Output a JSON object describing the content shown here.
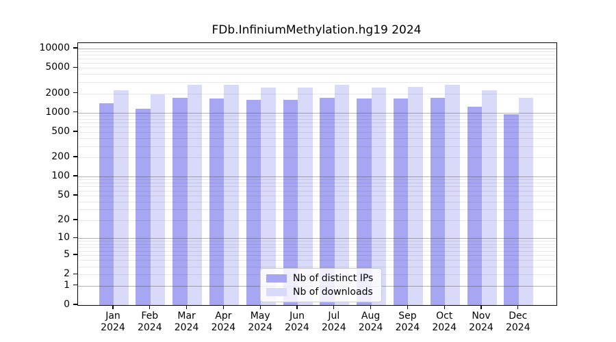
{
  "chart_data": {
    "type": "bar",
    "title": "FDb.InfiniumMethylation.hg19 2024",
    "year_label": "2024",
    "categories": [
      "Jan",
      "Feb",
      "Mar",
      "Apr",
      "May",
      "Jun",
      "Jul",
      "Aug",
      "Sep",
      "Oct",
      "Nov",
      "Dec"
    ],
    "series": [
      {
        "name": "Nb of distinct IPs",
        "color": "#a6a6f2",
        "values": [
          1400,
          1150,
          1700,
          1650,
          1580,
          1600,
          1700,
          1650,
          1680,
          1700,
          1250,
          950
        ]
      },
      {
        "name": "Nb of downloads",
        "color": "#d9d9f9",
        "values": [
          2250,
          1950,
          2700,
          2700,
          2450,
          2450,
          2700,
          2450,
          2550,
          2700,
          2250,
          1700
        ]
      }
    ],
    "yscale": "log1p",
    "ylim": [
      0,
      10000
    ],
    "yticks": [
      0,
      1,
      2,
      5,
      10,
      20,
      50,
      100,
      200,
      500,
      1000,
      2000,
      5000,
      10000
    ],
    "ytick_labels": [
      "0",
      "1",
      "2",
      "5",
      "10",
      "20",
      "50",
      "100",
      "200",
      "500",
      "1000",
      "2000",
      "5000",
      "10000"
    ],
    "major_grid_decades": [
      1,
      10,
      100,
      1000,
      10000
    ],
    "grid": "major+minor",
    "legend_position": "inside-bottom-center",
    "colors": {
      "major_grid": "rgba(70,70,70,0.42)",
      "minor_grid": "rgba(0,0,0,0.09)",
      "axis": "#000000",
      "background": "#ffffff"
    }
  }
}
